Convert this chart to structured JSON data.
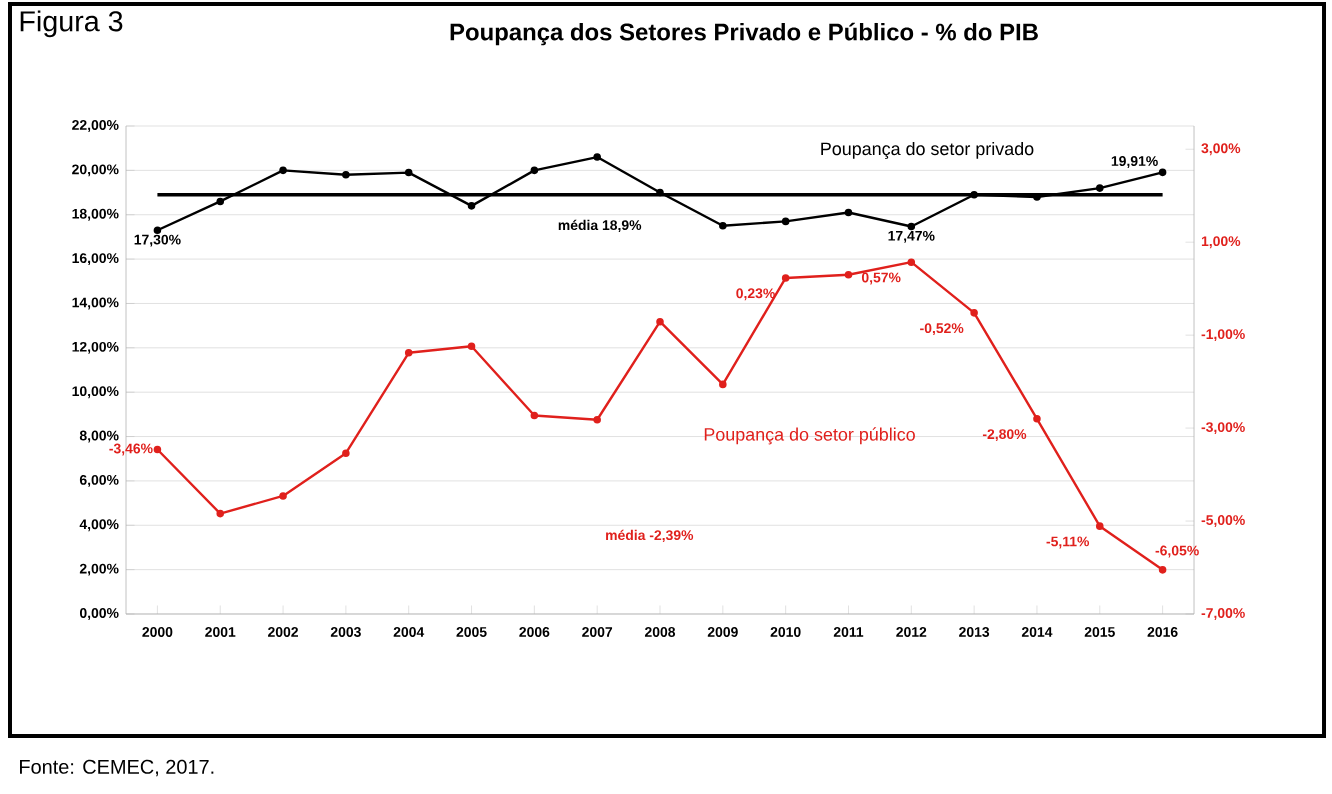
{
  "chart_data": {
    "type": "line",
    "title": "Poupança dos Setores Privado e Público - % do PIB",
    "categories": [
      "2000",
      "2001",
      "2002",
      "2003",
      "2004",
      "2005",
      "2006",
      "2007",
      "2008",
      "2009",
      "2010",
      "2011",
      "2012",
      "2013",
      "2014",
      "2015",
      "2016"
    ],
    "series": [
      {
        "name": "Poupança do setor privado",
        "color": "#000000",
        "values": [
          17.3,
          18.6,
          20.0,
          19.8,
          19.9,
          18.4,
          20.0,
          20.6,
          19.0,
          17.5,
          17.7,
          18.1,
          17.47,
          18.9,
          18.8,
          19.2,
          19.91
        ],
        "value_labels": [
          "17,30%",
          null,
          null,
          null,
          null,
          null,
          null,
          null,
          null,
          null,
          null,
          null,
          "17,47%",
          null,
          null,
          null,
          "19,91%"
        ]
      },
      {
        "name": "Poupança do setor público",
        "color": "#e0201c",
        "axis": "y2",
        "values": [
          -3.46,
          -4.84,
          -4.46,
          -3.54,
          -1.38,
          -1.24,
          -2.73,
          -2.82,
          -0.71,
          -2.06,
          0.23,
          0.3,
          0.57,
          -0.52,
          -2.8,
          -5.11,
          -6.05
        ],
        "value_labels": [
          "-3,46%",
          null,
          null,
          null,
          null,
          null,
          null,
          null,
          null,
          null,
          "0,23%",
          null,
          "0,57%",
          "-0,52%",
          "-2,80%",
          "-5,11%",
          "-6,05%"
        ]
      }
    ],
    "ylim": [
      0,
      22
    ],
    "yticks": [
      {
        "value": 0,
        "label": "0,00%"
      },
      {
        "value": 2,
        "label": "2,00%"
      },
      {
        "value": 4,
        "label": "4,00%"
      },
      {
        "value": 6,
        "label": "6,00%"
      },
      {
        "value": 8,
        "label": "8,00%"
      },
      {
        "value": 10,
        "label": "10,00%"
      },
      {
        "value": 12,
        "label": "12,00%"
      },
      {
        "value": 14,
        "label": "14,00%"
      },
      {
        "value": 16,
        "label": "16,00%"
      },
      {
        "value": 18,
        "label": "18,00%"
      },
      {
        "value": 20,
        "label": "20,00%"
      },
      {
        "value": 22,
        "label": "22,00%"
      }
    ],
    "y2lim": [
      -7,
      3.5
    ],
    "y2ticks": [
      {
        "value": -7,
        "label": "-7,00%"
      },
      {
        "value": -5,
        "label": "-5,00%"
      },
      {
        "value": -3,
        "label": "-3,00%"
      },
      {
        "value": -1,
        "label": "-1,00%"
      },
      {
        "value": 1,
        "label": "1,00%"
      },
      {
        "value": 3,
        "label": "3,00%"
      }
    ],
    "ref_lines": [
      {
        "axis": "y",
        "value": 18.9,
        "label": "média 18,9%",
        "color": "#000000"
      }
    ],
    "annotations": [
      "Figura 3",
      "média -2,39%",
      "Fonte: CEMEC, 2017."
    ],
    "grid": "y",
    "legend": false,
    "marker": "circle",
    "line_style": "solid"
  }
}
